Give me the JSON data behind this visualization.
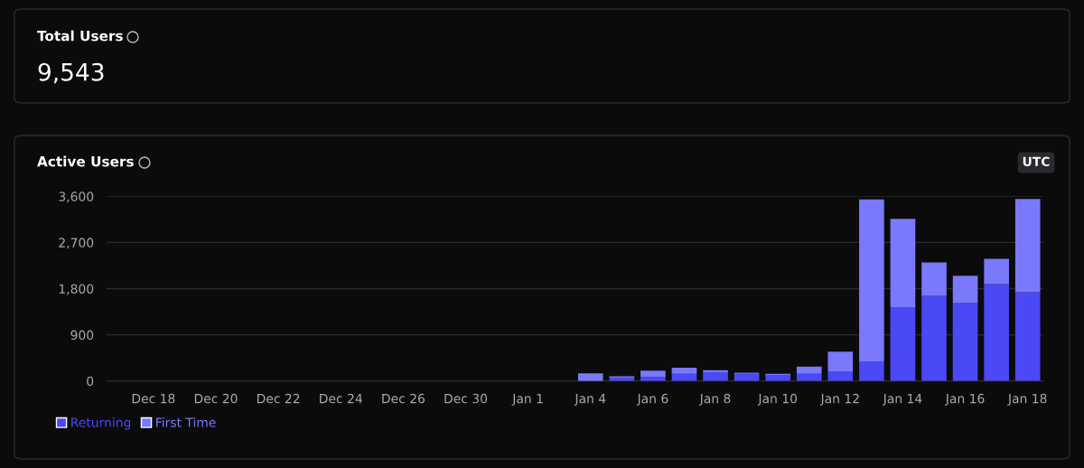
{
  "chart_data": {
    "type": "bar",
    "title": "Active Users",
    "stacked": true,
    "categories": [
      null,
      "Dec 18",
      null,
      "Dec 20",
      null,
      "Dec 22",
      null,
      "Dec 24",
      null,
      "Dec 26",
      null,
      "Dec 30",
      null,
      "Jan 1",
      null,
      "Jan 4",
      null,
      "Jan 6",
      null,
      "Jan 8",
      null,
      "Jan 10",
      null,
      "Jan 12",
      null,
      "Jan 14",
      null,
      "Jan 16",
      null,
      "Jan 18"
    ],
    "series": [
      {
        "name": "Returning",
        "color": "#4b48f5",
        "values": [
          0,
          0,
          0,
          0,
          0,
          0,
          0,
          0,
          0,
          0,
          0,
          0,
          0,
          0,
          0,
          null,
          60,
          80,
          140,
          170,
          140,
          120,
          140,
          180,
          380,
          1440,
          1660,
          1520,
          1890,
          1730
        ]
      },
      {
        "name": "First Time",
        "color": "#7a78fb",
        "values": [
          0,
          0,
          0,
          0,
          0,
          0,
          0,
          0,
          0,
          0,
          0,
          0,
          0,
          0,
          0,
          150,
          30,
          120,
          120,
          40,
          20,
          20,
          140,
          390,
          3160,
          1720,
          650,
          530,
          490,
          1820
        ]
      }
    ],
    "ylim": [
      0,
      3600
    ],
    "yticks": [
      {
        "value": 0,
        "label": "0"
      },
      {
        "value": 900,
        "label": "900"
      },
      {
        "value": 1800,
        "label": "1,800"
      },
      {
        "value": 2700,
        "label": "2,700"
      },
      {
        "value": 3600,
        "label": "3,600"
      }
    ],
    "grid": "y",
    "legend": "bottom left",
    "annotations": [
      "Total Users",
      "9,543",
      "UTC"
    ]
  }
}
